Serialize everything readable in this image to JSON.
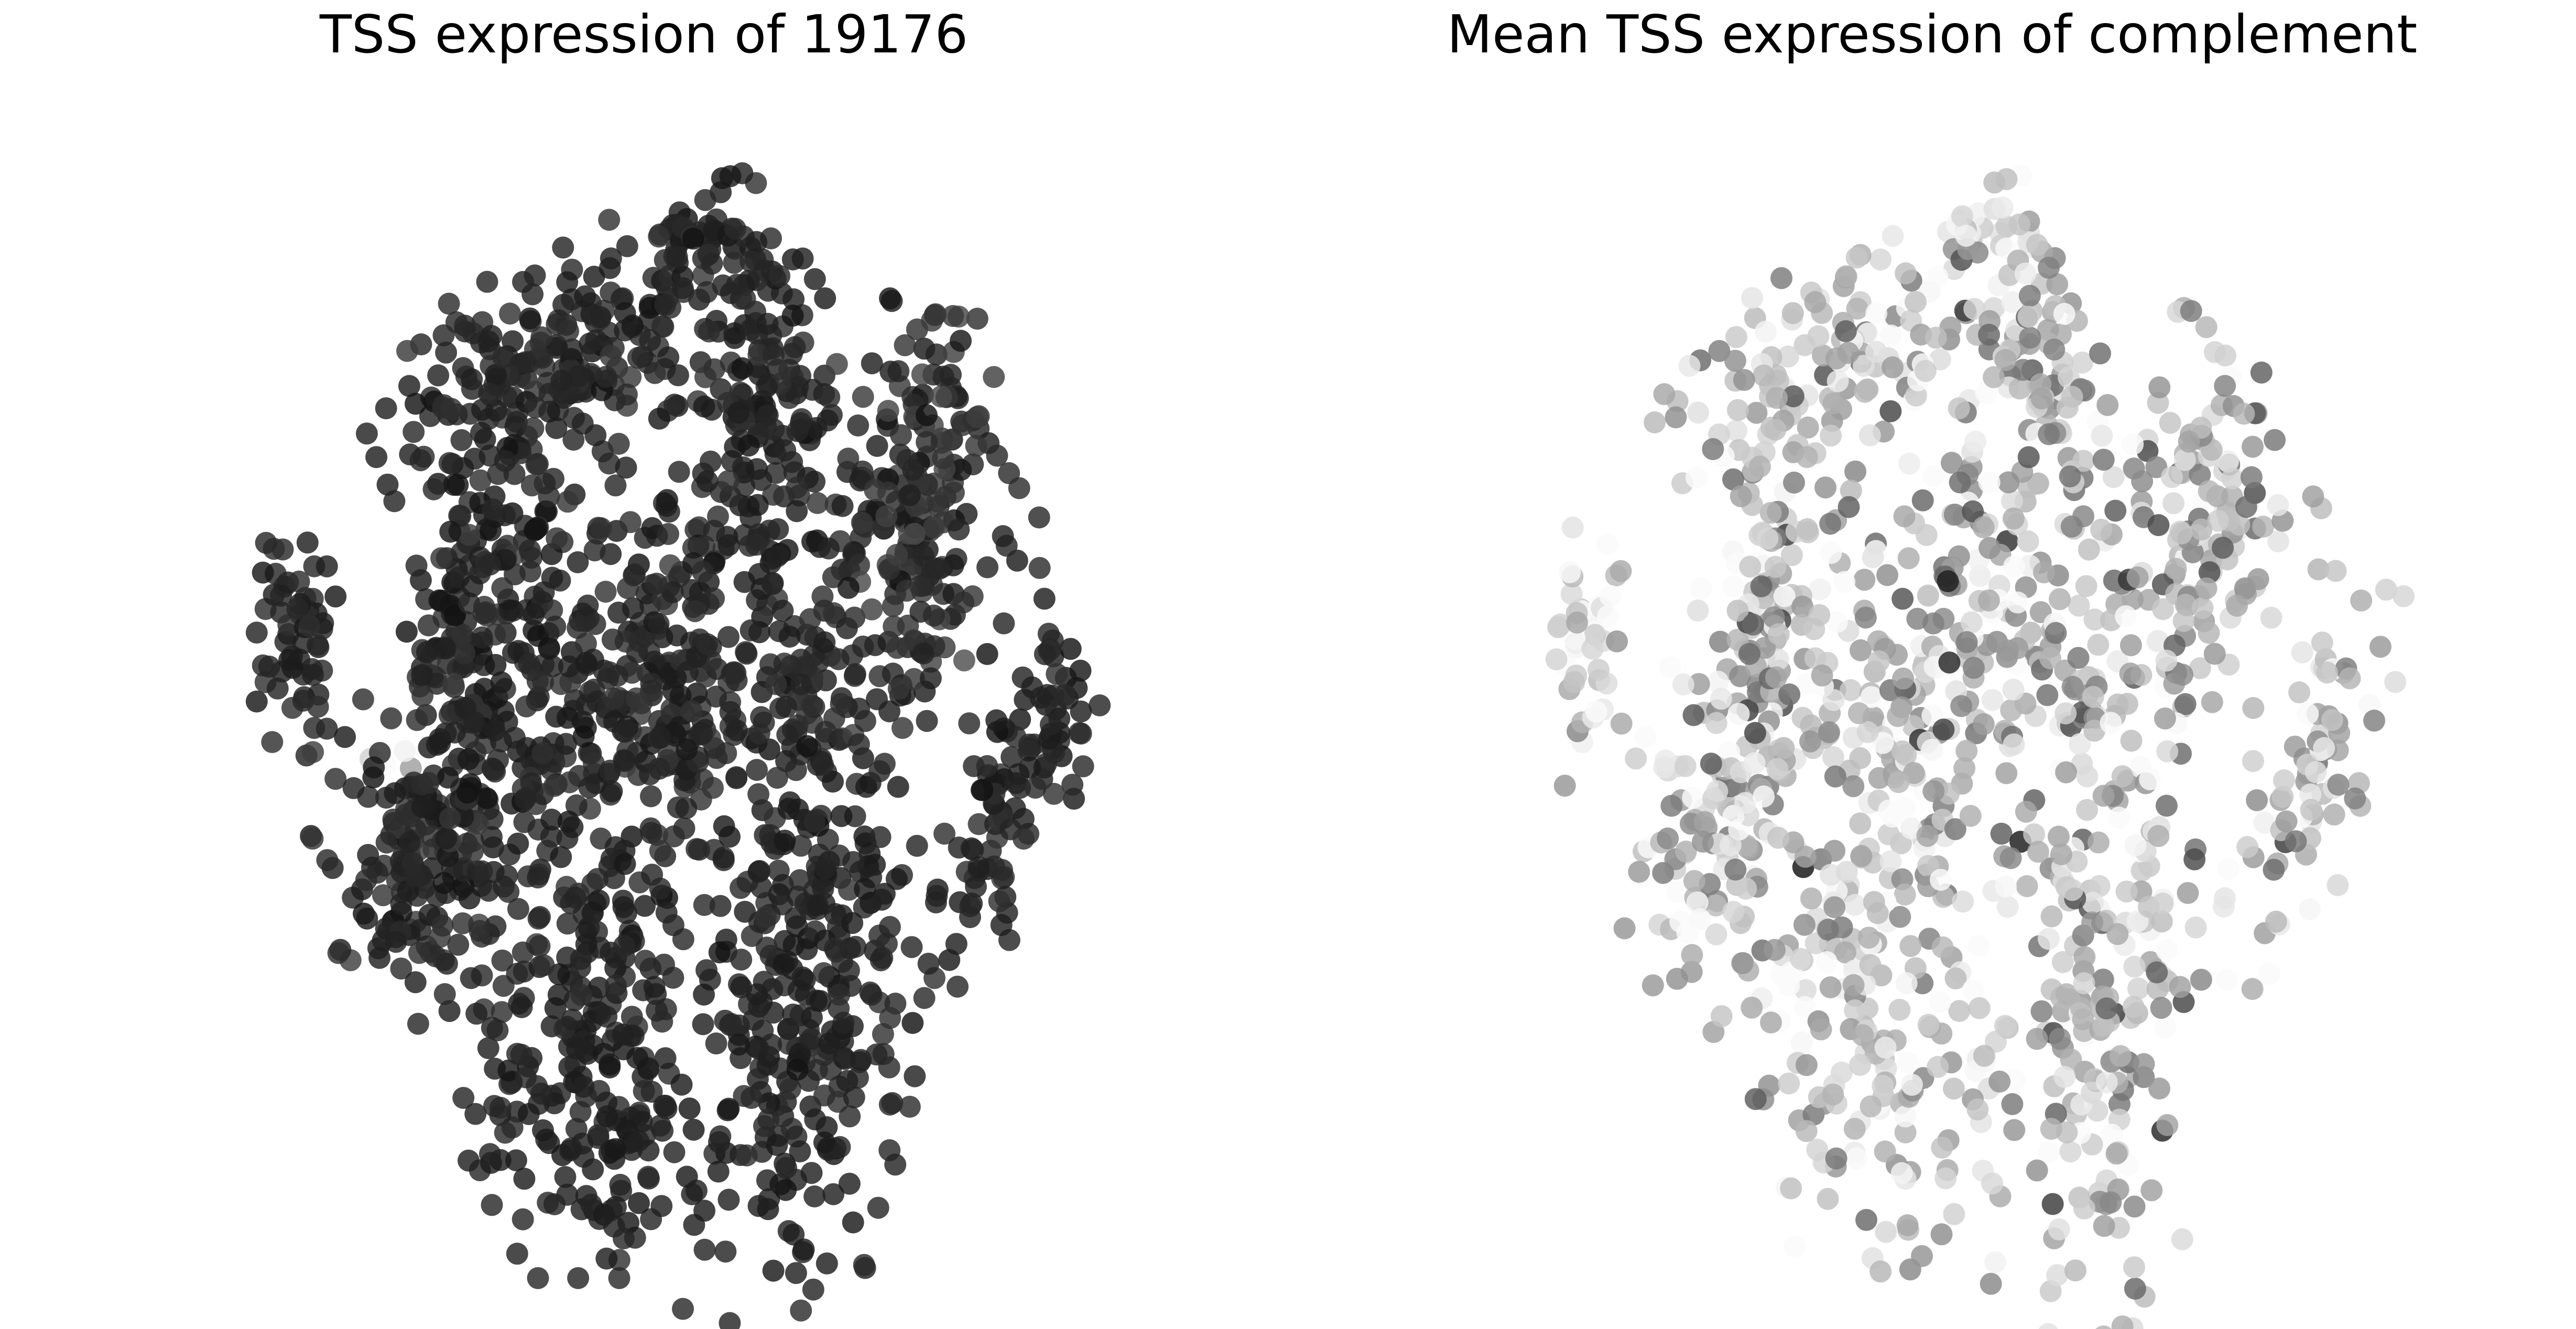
{
  "figure": {
    "titles": {
      "left": "TSS expression of 19176",
      "right": "Mean TSS expression of complement"
    }
  },
  "chart_data": [
    {
      "type": "scatter",
      "title": "TSS expression of 19176",
      "xlabel": "",
      "ylabel": "",
      "axes_visible": false,
      "grid": false,
      "xlim": [
        0,
        100
      ],
      "ylim": [
        0,
        100
      ],
      "colormap": "greys",
      "value_range": [
        0,
        1
      ],
      "clusters": [
        {
          "center": [
            54.6,
            88.6
          ],
          "spread": [
            1.4,
            1.1
          ],
          "angle": 0,
          "count": 28,
          "mean": 0.93,
          "jitter": 0.03
        },
        {
          "center": [
            42.0,
            78.0
          ],
          "spread": [
            9.5,
            4.2
          ],
          "angle": 25,
          "count": 230,
          "mean": 0.92,
          "jitter": 0.04
        },
        {
          "center": [
            61.5,
            77.5
          ],
          "spread": [
            2.8,
            7.5
          ],
          "angle": 12,
          "count": 120,
          "mean": 0.93,
          "jitter": 0.03
        },
        {
          "center": [
            33.5,
            55.5
          ],
          "spread": [
            3.2,
            8.5
          ],
          "angle": -10,
          "count": 160,
          "mean": 0.92,
          "jitter": 0.04
        },
        {
          "center": [
            15.0,
            52.0
          ],
          "spread": [
            1.8,
            5.0
          ],
          "angle": 0,
          "count": 60,
          "mean": 0.91,
          "jitter": 0.04
        },
        {
          "center": [
            24.5,
            42.5
          ],
          "spread": [
            1.2,
            0.6
          ],
          "angle": 0,
          "count": 5,
          "mean": 0.22,
          "jitter": 0.1
        },
        {
          "center": [
            53.0,
            50.0
          ],
          "spread": [
            17.0,
            8.5
          ],
          "angle": 38,
          "count": 620,
          "mean": 0.92,
          "jitter": 0.04
        },
        {
          "center": [
            66.0,
            48.0
          ],
          "spread": [
            2.0,
            1.8
          ],
          "angle": 0,
          "count": 24,
          "mean": 0.9,
          "jitter": 0.04
        },
        {
          "center": [
            78.0,
            63.0
          ],
          "spread": [
            3.2,
            8.5
          ],
          "angle": -5,
          "count": 140,
          "mean": 0.88,
          "jitter": 0.06
        },
        {
          "center": [
            87.5,
            40.5
          ],
          "spread": [
            2.6,
            8.5
          ],
          "angle": -18,
          "count": 110,
          "mean": 0.92,
          "jitter": 0.04
        },
        {
          "center": [
            28.5,
            33.5
          ],
          "spread": [
            3.5,
            6.5
          ],
          "angle": -15,
          "count": 130,
          "mean": 0.91,
          "jitter": 0.04
        },
        {
          "center": [
            45.0,
            16.0
          ],
          "spread": [
            6.0,
            8.5
          ],
          "angle": 0,
          "count": 230,
          "mean": 0.93,
          "jitter": 0.03
        },
        {
          "center": [
            67.0,
            22.0
          ],
          "spread": [
            5.0,
            14.0
          ],
          "angle": -8,
          "count": 300,
          "mean": 0.93,
          "jitter": 0.03
        },
        {
          "center": [
            58.0,
            34.0
          ],
          "spread": [
            0.1,
            0.1
          ],
          "angle": 0,
          "count": 1,
          "mean": 0.93,
          "jitter": 0.0
        },
        {
          "center": [
            81.5,
            35.0
          ],
          "spread": [
            0.1,
            0.1
          ],
          "angle": 0,
          "count": 1,
          "mean": 0.93,
          "jitter": 0.0
        }
      ]
    },
    {
      "type": "scatter",
      "title": "Mean TSS expression of complement",
      "xlabel": "",
      "ylabel": "",
      "axes_visible": false,
      "grid": false,
      "xlim": [
        0,
        100
      ],
      "ylim": [
        0,
        100
      ],
      "colormap": "greys",
      "value_range": [
        0,
        1
      ],
      "clusters": [
        {
          "center": [
            54.6,
            88.6
          ],
          "spread": [
            1.4,
            1.1
          ],
          "angle": 0,
          "count": 14,
          "mean": 0.12,
          "jitter": 0.1
        },
        {
          "center": [
            42.0,
            78.0
          ],
          "spread": [
            9.5,
            4.2
          ],
          "angle": 25,
          "count": 150,
          "mean": 0.25,
          "jitter": 0.2
        },
        {
          "center": [
            61.5,
            77.5
          ],
          "spread": [
            2.8,
            7.5
          ],
          "angle": 12,
          "count": 80,
          "mean": 0.3,
          "jitter": 0.2
        },
        {
          "center": [
            33.5,
            55.5
          ],
          "spread": [
            3.2,
            8.5
          ],
          "angle": -10,
          "count": 110,
          "mean": 0.3,
          "jitter": 0.2
        },
        {
          "center": [
            15.0,
            52.0
          ],
          "spread": [
            1.8,
            5.0
          ],
          "angle": 0,
          "count": 40,
          "mean": 0.15,
          "jitter": 0.15
        },
        {
          "center": [
            24.5,
            42.5
          ],
          "spread": [
            1.2,
            0.6
          ],
          "angle": 0,
          "count": 4,
          "mean": 0.1,
          "jitter": 0.05
        },
        {
          "center": [
            53.0,
            50.0
          ],
          "spread": [
            17.0,
            8.5
          ],
          "angle": 38,
          "count": 420,
          "mean": 0.3,
          "jitter": 0.22
        },
        {
          "center": [
            66.0,
            48.0
          ],
          "spread": [
            2.0,
            1.8
          ],
          "angle": 0,
          "count": 18,
          "mean": 0.38,
          "jitter": 0.2
        },
        {
          "center": [
            78.0,
            63.0
          ],
          "spread": [
            3.2,
            8.5
          ],
          "angle": -5,
          "count": 90,
          "mean": 0.32,
          "jitter": 0.2
        },
        {
          "center": [
            87.5,
            40.5
          ],
          "spread": [
            2.6,
            8.5
          ],
          "angle": -18,
          "count": 75,
          "mean": 0.28,
          "jitter": 0.2
        },
        {
          "center": [
            28.5,
            33.5
          ],
          "spread": [
            3.5,
            6.5
          ],
          "angle": -15,
          "count": 85,
          "mean": 0.3,
          "jitter": 0.2
        },
        {
          "center": [
            45.0,
            16.0
          ],
          "spread": [
            6.0,
            8.5
          ],
          "angle": 0,
          "count": 150,
          "mean": 0.22,
          "jitter": 0.18
        },
        {
          "center": [
            67.0,
            22.0
          ],
          "spread": [
            5.0,
            14.0
          ],
          "angle": -8,
          "count": 200,
          "mean": 0.3,
          "jitter": 0.22
        },
        {
          "center": [
            58.0,
            34.0
          ],
          "spread": [
            0.1,
            0.1
          ],
          "angle": 0,
          "count": 1,
          "mean": 0.5,
          "jitter": 0.0
        },
        {
          "center": [
            81.5,
            35.0
          ],
          "spread": [
            0.1,
            0.1
          ],
          "angle": 0,
          "count": 1,
          "mean": 0.2,
          "jitter": 0.0
        }
      ]
    }
  ]
}
